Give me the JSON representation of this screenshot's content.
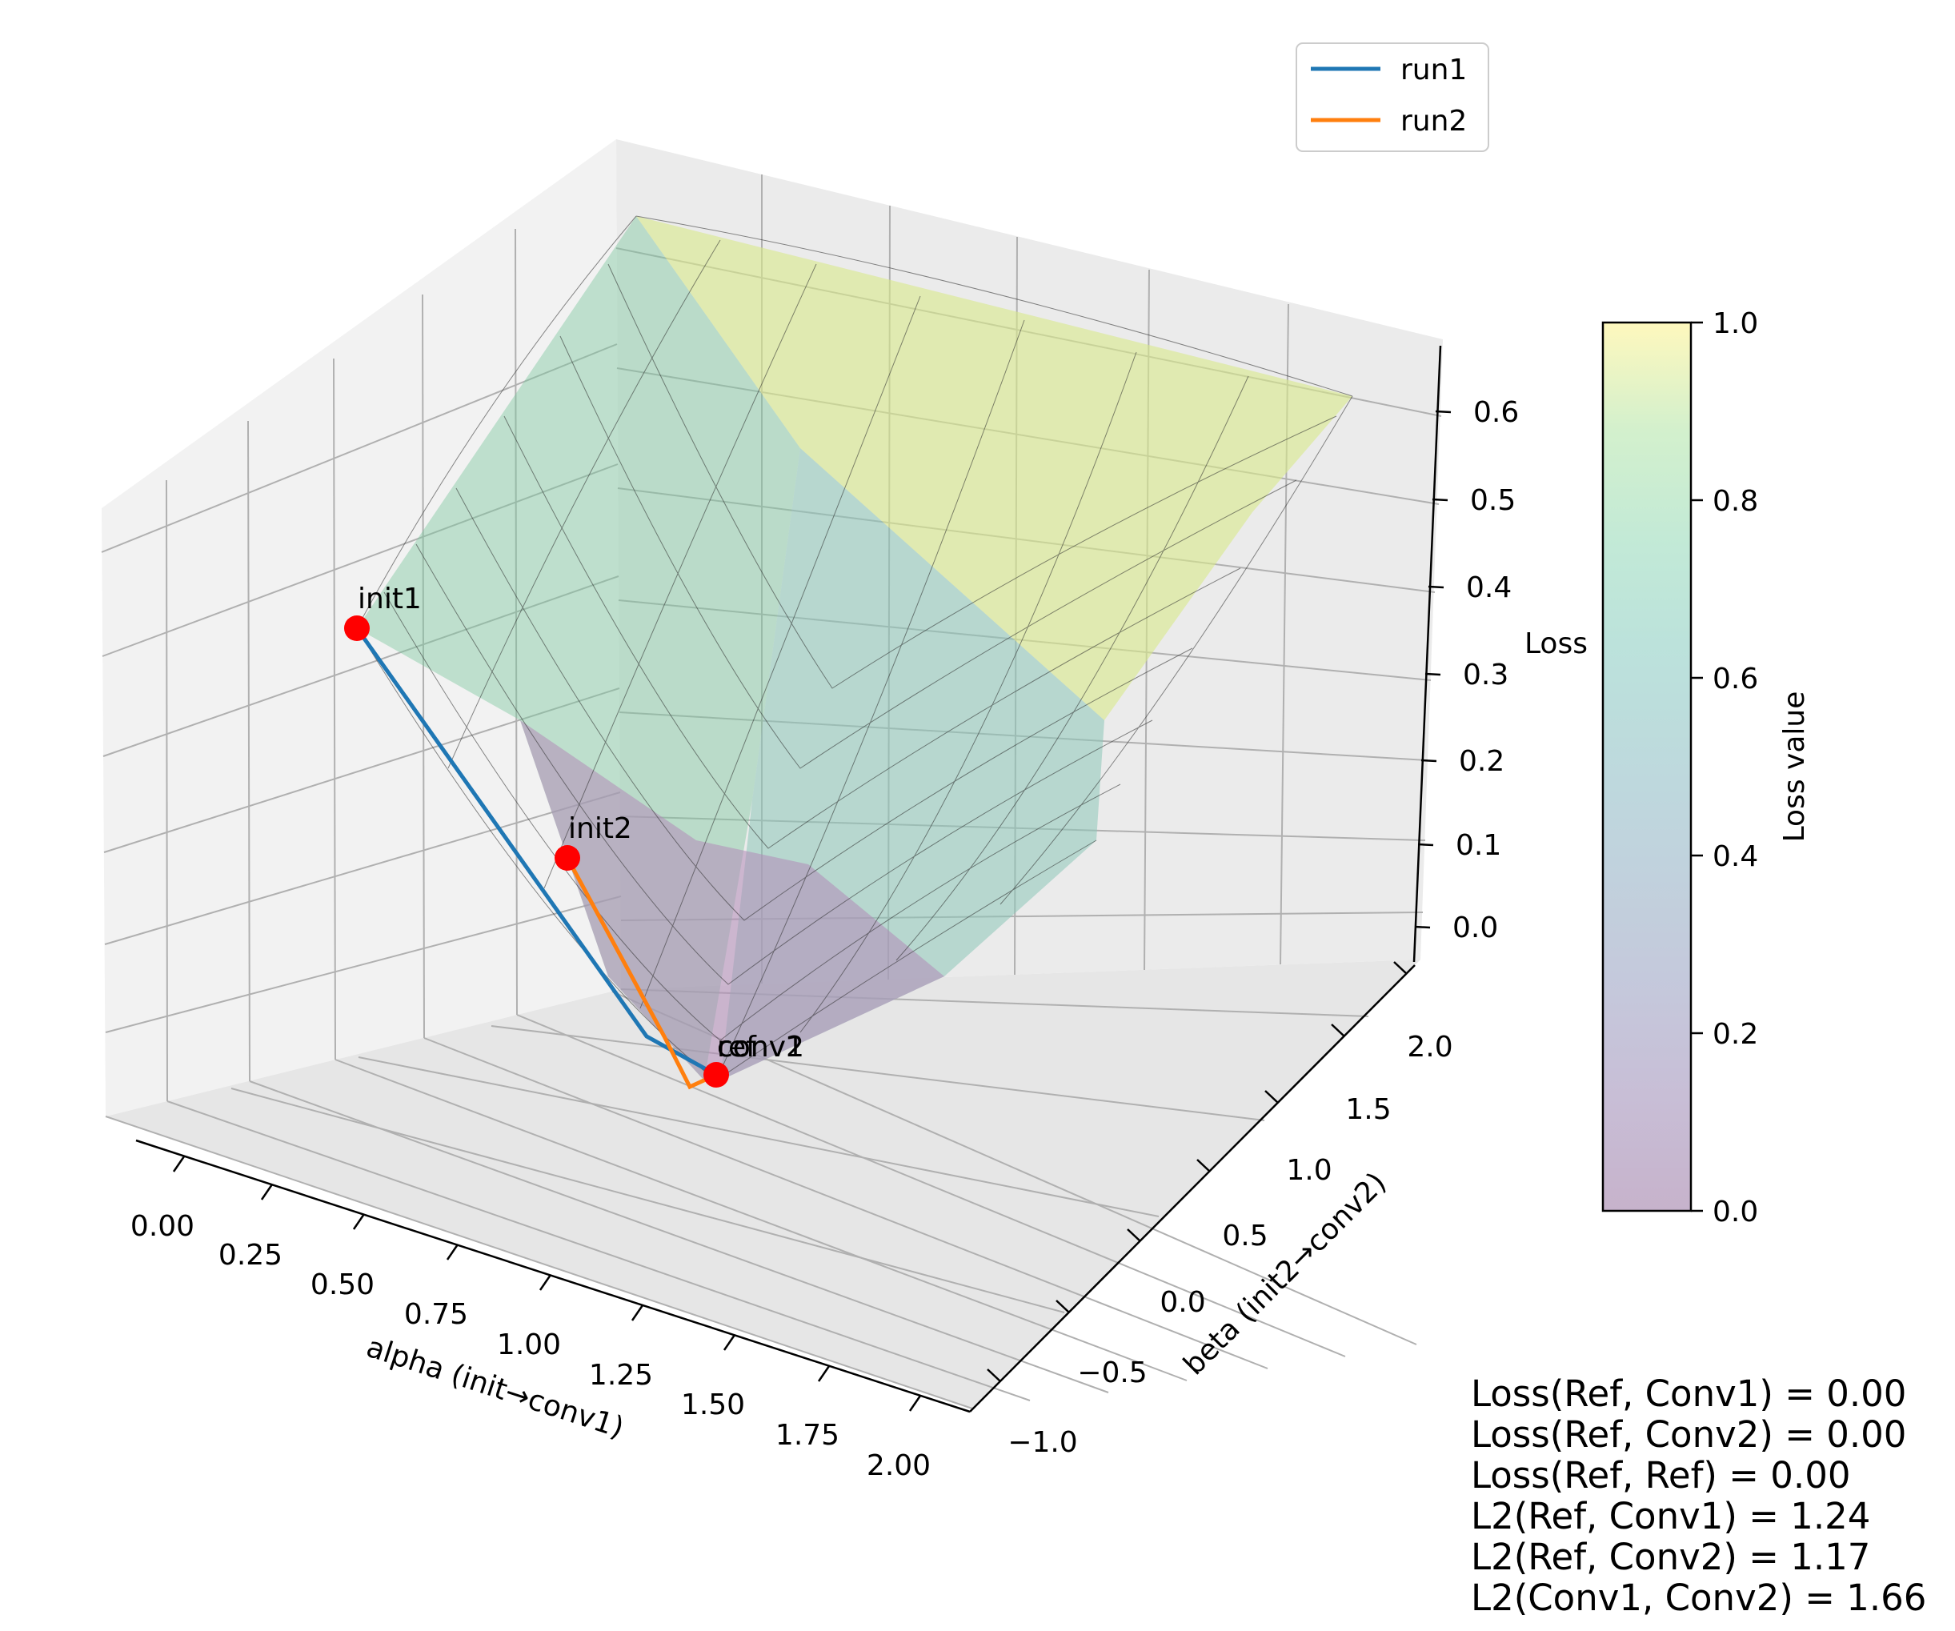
{
  "chart_data": {
    "type": "surface",
    "xlabel": "alpha (init→conv1)",
    "ylabel": "beta (init2→conv2)",
    "zlabel": "Loss",
    "xticks": [
      "0.00",
      "0.25",
      "0.50",
      "0.75",
      "1.00",
      "1.25",
      "1.50",
      "1.75",
      "2.00"
    ],
    "yticks": [
      "−1.0",
      "−0.5",
      "0.0",
      "0.5",
      "1.0",
      "1.5",
      "2.0"
    ],
    "zticks": [
      "0.0",
      "0.1",
      "0.2",
      "0.3",
      "0.4",
      "0.5",
      "0.6"
    ],
    "xlim": [
      0,
      2
    ],
    "ylim": [
      -1,
      2
    ],
    "zlim": [
      0,
      0.65
    ],
    "grid": true,
    "legend_position": "top-right",
    "series": [
      {
        "name": "run1",
        "color": "#1f77b4",
        "points": [
          [
            0,
            -1,
            0.36
          ],
          [
            1,
            0,
            0.01
          ],
          [
            1,
            0,
            0.0
          ]
        ]
      },
      {
        "name": "run2",
        "color": "#ff7f0e",
        "points": [
          [
            0,
            0,
            0.17
          ],
          [
            0.95,
            0,
            0.0
          ],
          [
            1,
            0,
            0.0
          ]
        ]
      }
    ],
    "markers": [
      {
        "label": "init1",
        "x": 0,
        "y": -1,
        "z": 0.36
      },
      {
        "label": "init2",
        "x": 0,
        "y": 0,
        "z": 0.17
      },
      {
        "label": "conv1",
        "x": 1,
        "y": 0,
        "z": 0.0
      },
      {
        "label": "conv2",
        "x": 1,
        "y": 0,
        "z": 0.0
      },
      {
        "label": "ref",
        "x": 1,
        "y": 0,
        "z": 0.0
      }
    ],
    "surface": {
      "colormap": "viridis",
      "alpha": 0.3,
      "description": "bowl-shaped loss surface with minimum near the converged points"
    },
    "colorbar": {
      "label": "Loss value",
      "ticks": [
        "0.0",
        "0.2",
        "0.4",
        "0.6",
        "0.8",
        "1.0"
      ],
      "range": [
        0,
        1
      ]
    }
  },
  "stats": [
    "Loss(Ref, Conv1) = 0.00",
    "Loss(Ref, Conv2) = 0.00",
    "Loss(Ref, Ref) = 0.00",
    "L2(Ref, Conv1) = 1.24",
    "L2(Ref, Conv2) = 1.17",
    "L2(Conv1, Conv2) = 1.66"
  ]
}
